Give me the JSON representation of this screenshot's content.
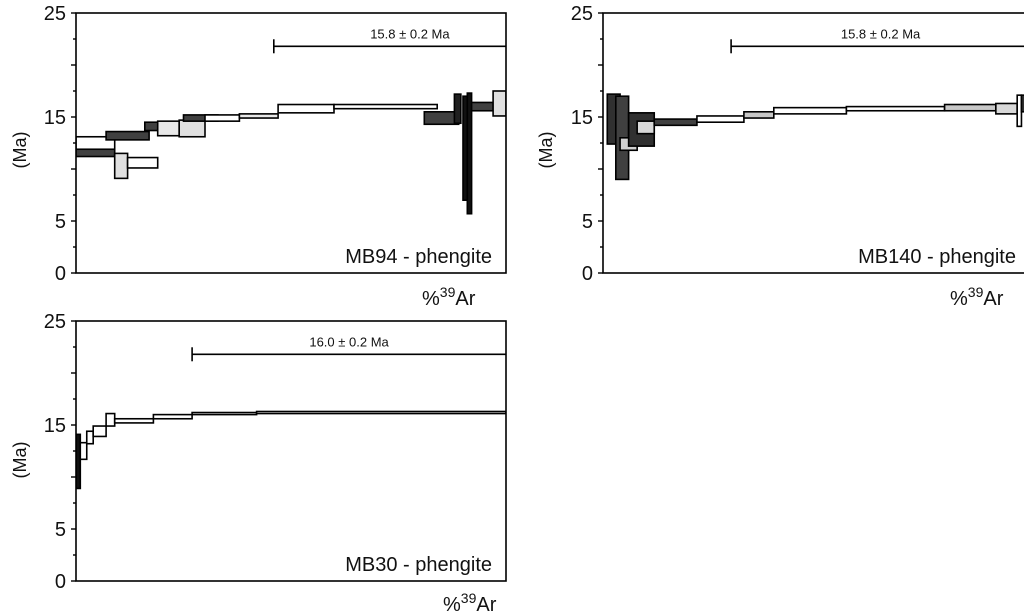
{
  "chart_data": [
    {
      "type": "step",
      "panel": "MB94",
      "sample_label": "MB94 - phengite",
      "ylabel": "(Ma)",
      "xlabel": "%39Ar",
      "ylim": [
        0,
        25
      ],
      "yticks": [
        "25",
        "15",
        "5",
        "0"
      ],
      "plateau": {
        "label": "15.8 ± 0.2 Ma",
        "x_start": 46,
        "x_end": 100
      },
      "steps": [
        {
          "x0": 0,
          "x1": 9,
          "age": 12.0,
          "err": 0.8,
          "fill": "#404040"
        },
        {
          "x0": 0,
          "x1": 9,
          "age": 12.5,
          "err": 0.6,
          "fill": "#ffffff"
        },
        {
          "x0": 7,
          "x1": 17,
          "age": 13.2,
          "err": 0.4,
          "fill": "#404040"
        },
        {
          "x0": 9,
          "x1": 12,
          "age": 10.3,
          "err": 1.2,
          "fill": "#e0e0e0"
        },
        {
          "x0": 12,
          "x1": 19,
          "age": 10.6,
          "err": 0.5,
          "fill": "#ffffff"
        },
        {
          "x0": 16,
          "x1": 25,
          "age": 14.1,
          "err": 0.4,
          "fill": "#404040"
        },
        {
          "x0": 19,
          "x1": 24,
          "age": 13.9,
          "err": 0.7,
          "fill": "#e8e8e8"
        },
        {
          "x0": 24,
          "x1": 30,
          "age": 13.9,
          "err": 0.8,
          "fill": "#e0e0e0"
        },
        {
          "x0": 25,
          "x1": 33,
          "age": 14.9,
          "err": 0.3,
          "fill": "#404040"
        },
        {
          "x0": 30,
          "x1": 38,
          "age": 14.9,
          "err": 0.3,
          "fill": "#ffffff"
        },
        {
          "x0": 38,
          "x1": 47,
          "age": 15.1,
          "err": 0.2,
          "fill": "#e8e8e8"
        },
        {
          "x0": 47,
          "x1": 60,
          "age": 15.8,
          "err": 0.4,
          "fill": "#ffffff"
        },
        {
          "x0": 60,
          "x1": 84,
          "age": 16.0,
          "err": 0.2,
          "fill": "#ffffff"
        },
        {
          "x0": 81,
          "x1": 89,
          "age": 14.9,
          "err": 0.6,
          "fill": "#404040"
        },
        {
          "x0": 88,
          "x1": 89.5,
          "age": 15.8,
          "err": 1.4,
          "fill": "#202020"
        },
        {
          "x0": 90,
          "x1": 91,
          "age": 12.0,
          "err": 5.0,
          "fill": "#111111"
        },
        {
          "x0": 91,
          "x1": 92,
          "age": 11.5,
          "err": 5.8,
          "fill": "#111111"
        },
        {
          "x0": 92,
          "x1": 97,
          "age": 16.0,
          "err": 0.4,
          "fill": "#404040"
        },
        {
          "x0": 97,
          "x1": 100,
          "age": 16.3,
          "err": 1.2,
          "fill": "#e0e0e0"
        }
      ]
    },
    {
      "type": "step",
      "panel": "MB140",
      "sample_label": "MB140 - phengite",
      "ylabel": "(Ma)",
      "xlabel": "%39Ar",
      "ylim": [
        0,
        25
      ],
      "yticks": [
        "25",
        "15",
        "5",
        "0"
      ],
      "plateau": {
        "label": "15.8 ± 0.2 Ma",
        "x_start": 30,
        "x_end": 100
      },
      "steps": [
        {
          "x0": 1,
          "x1": 4,
          "age": 14.8,
          "err": 2.4,
          "fill": "#303030"
        },
        {
          "x0": 3,
          "x1": 6,
          "age": 13.0,
          "err": 4.0,
          "fill": "#404040"
        },
        {
          "x0": 4,
          "x1": 8,
          "age": 12.4,
          "err": 0.6,
          "fill": "#d0d0d0"
        },
        {
          "x0": 6,
          "x1": 12,
          "age": 13.8,
          "err": 1.6,
          "fill": "#303030"
        },
        {
          "x0": 8,
          "x1": 12,
          "age": 14.0,
          "err": 0.6,
          "fill": "#d8d8d8"
        },
        {
          "x0": 12,
          "x1": 22,
          "age": 14.5,
          "err": 0.3,
          "fill": "#404040"
        },
        {
          "x0": 22,
          "x1": 33,
          "age": 14.8,
          "err": 0.3,
          "fill": "#ffffff"
        },
        {
          "x0": 33,
          "x1": 40,
          "age": 15.2,
          "err": 0.3,
          "fill": "#c8c8c8"
        },
        {
          "x0": 40,
          "x1": 57,
          "age": 15.6,
          "err": 0.3,
          "fill": "#ffffff"
        },
        {
          "x0": 57,
          "x1": 80,
          "age": 15.8,
          "err": 0.2,
          "fill": "#ffffff"
        },
        {
          "x0": 80,
          "x1": 92,
          "age": 15.9,
          "err": 0.3,
          "fill": "#c8c8c8"
        },
        {
          "x0": 92,
          "x1": 97,
          "age": 15.8,
          "err": 0.5,
          "fill": "#d8d8d8"
        },
        {
          "x0": 97,
          "x1": 98,
          "age": 15.6,
          "err": 1.5,
          "fill": "#ffffff"
        },
        {
          "x0": 98,
          "x1": 100,
          "age": 16.3,
          "err": 0.8,
          "fill": "#303030"
        }
      ]
    },
    {
      "type": "step",
      "panel": "MB30",
      "sample_label": "MB30 - phengite",
      "ylabel": "(Ma)",
      "xlabel": "%39Ar",
      "ylim": [
        0,
        25
      ],
      "yticks": [
        "25",
        "15",
        "5",
        "0"
      ],
      "plateau": {
        "label": "16.0 ± 0.2 Ma",
        "x_start": 27,
        "x_end": 100
      },
      "steps": [
        {
          "x0": 0,
          "x1": 1,
          "age": 11.5,
          "err": 2.6,
          "fill": "#111111"
        },
        {
          "x0": 1,
          "x1": 2.5,
          "age": 12.5,
          "err": 0.8,
          "fill": "#ffffff"
        },
        {
          "x0": 2.5,
          "x1": 4,
          "age": 13.8,
          "err": 0.6,
          "fill": "#ffffff"
        },
        {
          "x0": 4,
          "x1": 7,
          "age": 14.4,
          "err": 0.5,
          "fill": "#ffffff"
        },
        {
          "x0": 7,
          "x1": 9,
          "age": 15.5,
          "err": 0.6,
          "fill": "#ffffff"
        },
        {
          "x0": 9,
          "x1": 18,
          "age": 15.4,
          "err": 0.2,
          "fill": "#ffffff"
        },
        {
          "x0": 18,
          "x1": 27,
          "age": 15.8,
          "err": 0.2,
          "fill": "#ffffff"
        },
        {
          "x0": 27,
          "x1": 42,
          "age": 16.1,
          "err": 0.1,
          "fill": "#ffffff"
        },
        {
          "x0": 42,
          "x1": 100,
          "age": 16.2,
          "err": 0.1,
          "fill": "#ffffff"
        }
      ]
    }
  ]
}
